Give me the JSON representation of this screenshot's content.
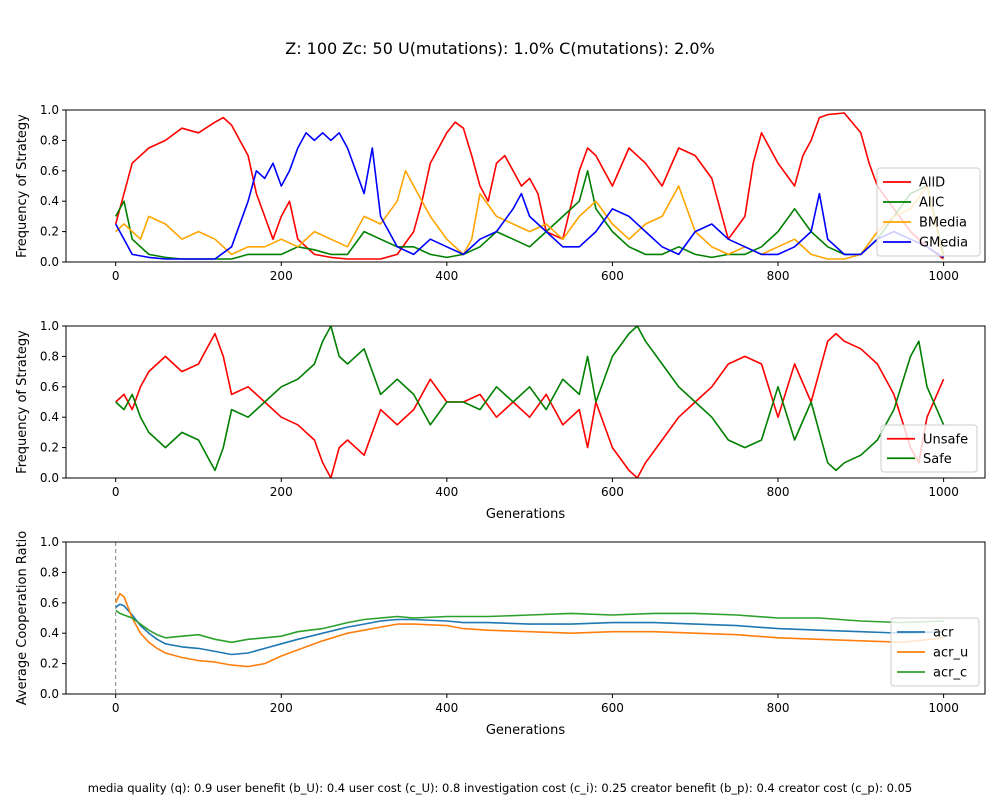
{
  "figure": {
    "title": "Z: 100  Zc: 50  U(mutations): 1.0%  C(mutations): 2.0%",
    "footer": "media quality (q): 0.9  user benefit (b_U): 0.4  user cost (c_U): 0.8  investigation cost (c_i): 0.25  creator benefit (b_p): 0.4  creator cost (c_p): 0.05"
  },
  "chart_data": [
    {
      "type": "line",
      "xlabel": "",
      "ylabel": "Frequency of Strategy",
      "xlim": [
        -60,
        1050
      ],
      "ylim": [
        0,
        1
      ],
      "xticks": [
        0,
        200,
        400,
        600,
        800,
        1000
      ],
      "yticks": [
        0.0,
        0.2,
        0.4,
        0.6,
        0.8,
        1.0
      ],
      "grid": false,
      "legend": "right",
      "series": [
        {
          "name": "AllD",
          "color": "#ff0000",
          "x": [
            0,
            10,
            20,
            40,
            60,
            80,
            100,
            120,
            130,
            140,
            160,
            170,
            180,
            190,
            200,
            210,
            220,
            240,
            260,
            280,
            300,
            320,
            340,
            360,
            370,
            380,
            390,
            400,
            410,
            420,
            430,
            440,
            450,
            460,
            470,
            480,
            490,
            500,
            510,
            520,
            540,
            560,
            570,
            580,
            600,
            620,
            640,
            660,
            680,
            700,
            720,
            740,
            760,
            770,
            780,
            800,
            820,
            830,
            840,
            850,
            860,
            880,
            900,
            910,
            920,
            940,
            960,
            980,
            1000
          ],
          "y": [
            0.25,
            0.45,
            0.65,
            0.75,
            0.8,
            0.88,
            0.85,
            0.92,
            0.95,
            0.9,
            0.7,
            0.45,
            0.3,
            0.15,
            0.3,
            0.4,
            0.15,
            0.05,
            0.03,
            0.02,
            0.02,
            0.02,
            0.05,
            0.2,
            0.4,
            0.65,
            0.75,
            0.85,
            0.92,
            0.88,
            0.7,
            0.5,
            0.4,
            0.65,
            0.7,
            0.6,
            0.5,
            0.55,
            0.45,
            0.2,
            0.15,
            0.6,
            0.75,
            0.7,
            0.5,
            0.75,
            0.65,
            0.5,
            0.75,
            0.7,
            0.55,
            0.15,
            0.3,
            0.65,
            0.85,
            0.65,
            0.5,
            0.7,
            0.8,
            0.95,
            0.97,
            0.98,
            0.85,
            0.65,
            0.5,
            0.35,
            0.2,
            0.1,
            0.02
          ]
        },
        {
          "name": "AllC",
          "color": "#008000",
          "x": [
            0,
            5,
            10,
            20,
            40,
            60,
            80,
            100,
            120,
            140,
            160,
            180,
            200,
            220,
            240,
            260,
            280,
            300,
            320,
            340,
            360,
            380,
            400,
            420,
            440,
            460,
            480,
            500,
            520,
            540,
            560,
            570,
            580,
            600,
            620,
            640,
            660,
            680,
            700,
            720,
            740,
            760,
            780,
            800,
            820,
            840,
            860,
            880,
            900,
            920,
            940,
            960,
            980,
            1000
          ],
          "y": [
            0.3,
            0.35,
            0.4,
            0.15,
            0.05,
            0.03,
            0.02,
            0.02,
            0.02,
            0.02,
            0.05,
            0.05,
            0.05,
            0.1,
            0.08,
            0.05,
            0.05,
            0.2,
            0.15,
            0.1,
            0.1,
            0.05,
            0.03,
            0.05,
            0.1,
            0.2,
            0.15,
            0.1,
            0.2,
            0.3,
            0.4,
            0.6,
            0.35,
            0.2,
            0.1,
            0.05,
            0.05,
            0.1,
            0.05,
            0.03,
            0.05,
            0.05,
            0.1,
            0.2,
            0.35,
            0.2,
            0.1,
            0.05,
            0.05,
            0.15,
            0.3,
            0.45,
            0.5,
            0.05
          ]
        },
        {
          "name": "BMedia",
          "color": "#ffa500",
          "x": [
            0,
            10,
            20,
            30,
            40,
            60,
            80,
            100,
            120,
            140,
            160,
            180,
            200,
            220,
            240,
            260,
            280,
            300,
            320,
            340,
            350,
            360,
            380,
            400,
            420,
            430,
            440,
            460,
            480,
            500,
            520,
            540,
            560,
            580,
            600,
            620,
            640,
            660,
            680,
            700,
            720,
            740,
            760,
            780,
            800,
            820,
            840,
            860,
            880,
            900,
            920,
            940,
            960,
            980,
            1000
          ],
          "y": [
            0.2,
            0.25,
            0.2,
            0.15,
            0.3,
            0.25,
            0.15,
            0.2,
            0.15,
            0.05,
            0.1,
            0.1,
            0.15,
            0.1,
            0.2,
            0.15,
            0.1,
            0.3,
            0.25,
            0.4,
            0.6,
            0.5,
            0.3,
            0.15,
            0.05,
            0.15,
            0.45,
            0.3,
            0.25,
            0.2,
            0.25,
            0.15,
            0.3,
            0.4,
            0.25,
            0.15,
            0.25,
            0.3,
            0.5,
            0.2,
            0.1,
            0.05,
            0.1,
            0.05,
            0.1,
            0.15,
            0.05,
            0.02,
            0.02,
            0.05,
            0.2,
            0.3,
            0.35,
            0.5,
            0.02
          ]
        },
        {
          "name": "GMedia",
          "color": "#0000ff",
          "x": [
            0,
            10,
            20,
            40,
            60,
            80,
            100,
            120,
            140,
            160,
            170,
            180,
            190,
            200,
            210,
            220,
            230,
            240,
            250,
            260,
            270,
            280,
            290,
            300,
            310,
            320,
            330,
            340,
            360,
            380,
            400,
            420,
            440,
            460,
            480,
            490,
            500,
            520,
            540,
            560,
            580,
            600,
            620,
            640,
            660,
            680,
            700,
            720,
            740,
            760,
            780,
            800,
            820,
            840,
            850,
            860,
            880,
            900,
            920,
            940,
            960,
            980,
            1000
          ],
          "y": [
            0.25,
            0.15,
            0.05,
            0.03,
            0.02,
            0.02,
            0.02,
            0.02,
            0.1,
            0.4,
            0.6,
            0.55,
            0.65,
            0.5,
            0.6,
            0.75,
            0.85,
            0.8,
            0.85,
            0.8,
            0.85,
            0.75,
            0.6,
            0.45,
            0.75,
            0.3,
            0.2,
            0.1,
            0.05,
            0.15,
            0.1,
            0.05,
            0.15,
            0.2,
            0.35,
            0.45,
            0.3,
            0.2,
            0.1,
            0.1,
            0.2,
            0.35,
            0.3,
            0.2,
            0.1,
            0.05,
            0.2,
            0.25,
            0.15,
            0.1,
            0.05,
            0.05,
            0.1,
            0.2,
            0.45,
            0.15,
            0.05,
            0.05,
            0.15,
            0.2,
            0.15,
            0.1,
            0.03
          ]
        }
      ]
    },
    {
      "type": "line",
      "xlabel": "Generations",
      "ylabel": "Frequency of Strategy",
      "xlim": [
        -60,
        1050
      ],
      "ylim": [
        0,
        1
      ],
      "xticks": [
        0,
        200,
        400,
        600,
        800,
        1000
      ],
      "yticks": [
        0.0,
        0.2,
        0.4,
        0.6,
        0.8,
        1.0
      ],
      "grid": false,
      "legend": "right",
      "series": [
        {
          "name": "Unsafe",
          "color": "#ff0000",
          "x": [
            0,
            10,
            20,
            30,
            40,
            60,
            80,
            100,
            110,
            120,
            130,
            140,
            160,
            180,
            200,
            220,
            240,
            250,
            260,
            270,
            280,
            300,
            320,
            340,
            360,
            380,
            400,
            420,
            440,
            460,
            480,
            500,
            520,
            540,
            560,
            570,
            580,
            600,
            620,
            630,
            640,
            660,
            680,
            700,
            720,
            740,
            760,
            780,
            800,
            820,
            840,
            860,
            870,
            880,
            900,
            920,
            940,
            960,
            970,
            980,
            1000
          ],
          "y": [
            0.5,
            0.55,
            0.45,
            0.6,
            0.7,
            0.8,
            0.7,
            0.75,
            0.85,
            0.95,
            0.8,
            0.55,
            0.6,
            0.5,
            0.4,
            0.35,
            0.25,
            0.1,
            0.0,
            0.2,
            0.25,
            0.15,
            0.45,
            0.35,
            0.45,
            0.65,
            0.5,
            0.5,
            0.55,
            0.4,
            0.5,
            0.4,
            0.55,
            0.35,
            0.45,
            0.2,
            0.5,
            0.2,
            0.05,
            0.0,
            0.1,
            0.25,
            0.4,
            0.5,
            0.6,
            0.75,
            0.8,
            0.75,
            0.4,
            0.75,
            0.5,
            0.9,
            0.95,
            0.9,
            0.85,
            0.75,
            0.55,
            0.2,
            0.1,
            0.4,
            0.65
          ]
        },
        {
          "name": "Safe",
          "color": "#008000",
          "x": [
            0,
            10,
            20,
            30,
            40,
            60,
            80,
            100,
            110,
            120,
            130,
            140,
            160,
            180,
            200,
            220,
            240,
            250,
            260,
            270,
            280,
            300,
            320,
            340,
            360,
            380,
            400,
            420,
            440,
            460,
            480,
            500,
            520,
            540,
            560,
            570,
            580,
            600,
            620,
            630,
            640,
            660,
            680,
            700,
            720,
            740,
            760,
            780,
            800,
            820,
            840,
            860,
            870,
            880,
            900,
            920,
            940,
            960,
            970,
            980,
            1000
          ],
          "y": [
            0.5,
            0.45,
            0.55,
            0.4,
            0.3,
            0.2,
            0.3,
            0.25,
            0.15,
            0.05,
            0.2,
            0.45,
            0.4,
            0.5,
            0.6,
            0.65,
            0.75,
            0.9,
            1.0,
            0.8,
            0.75,
            0.85,
            0.55,
            0.65,
            0.55,
            0.35,
            0.5,
            0.5,
            0.45,
            0.6,
            0.5,
            0.6,
            0.45,
            0.65,
            0.55,
            0.8,
            0.5,
            0.8,
            0.95,
            1.0,
            0.9,
            0.75,
            0.6,
            0.5,
            0.4,
            0.25,
            0.2,
            0.25,
            0.6,
            0.25,
            0.5,
            0.1,
            0.05,
            0.1,
            0.15,
            0.25,
            0.45,
            0.8,
            0.9,
            0.6,
            0.35
          ]
        }
      ]
    },
    {
      "type": "line",
      "xlabel": "Generations",
      "ylabel": "Average Cooperation Ratio",
      "xlim": [
        -60,
        1050
      ],
      "ylim": [
        0,
        1
      ],
      "xticks": [
        0,
        200,
        400,
        600,
        800,
        1000
      ],
      "yticks": [
        0.0,
        0.2,
        0.4,
        0.6,
        0.8,
        1.0
      ],
      "grid": false,
      "legend": "right",
      "vline": 0,
      "series": [
        {
          "name": "acr",
          "color": "#1f77b4",
          "x": [
            0,
            5,
            10,
            20,
            30,
            40,
            50,
            60,
            80,
            100,
            120,
            140,
            160,
            180,
            200,
            220,
            250,
            280,
            300,
            320,
            340,
            360,
            400,
            420,
            450,
            500,
            550,
            600,
            650,
            700,
            750,
            800,
            850,
            900,
            950,
            1000
          ],
          "y": [
            0.57,
            0.59,
            0.58,
            0.52,
            0.45,
            0.4,
            0.36,
            0.33,
            0.31,
            0.3,
            0.28,
            0.26,
            0.27,
            0.3,
            0.33,
            0.36,
            0.4,
            0.44,
            0.46,
            0.48,
            0.49,
            0.49,
            0.48,
            0.47,
            0.47,
            0.46,
            0.46,
            0.47,
            0.47,
            0.46,
            0.45,
            0.43,
            0.42,
            0.41,
            0.4,
            0.41
          ]
        },
        {
          "name": "acr_u",
          "color": "#ff7f0e",
          "x": [
            0,
            5,
            10,
            20,
            30,
            40,
            50,
            60,
            80,
            100,
            120,
            140,
            160,
            180,
            200,
            220,
            250,
            280,
            300,
            320,
            340,
            360,
            400,
            420,
            450,
            500,
            550,
            600,
            650,
            700,
            750,
            800,
            850,
            900,
            950,
            1000
          ],
          "y": [
            0.6,
            0.66,
            0.64,
            0.5,
            0.4,
            0.34,
            0.3,
            0.27,
            0.24,
            0.22,
            0.21,
            0.19,
            0.18,
            0.2,
            0.25,
            0.29,
            0.35,
            0.4,
            0.42,
            0.44,
            0.46,
            0.46,
            0.45,
            0.43,
            0.42,
            0.41,
            0.4,
            0.41,
            0.41,
            0.4,
            0.39,
            0.37,
            0.36,
            0.35,
            0.34,
            0.37
          ]
        },
        {
          "name": "acr_c",
          "color": "#2ca02c",
          "x": [
            0,
            5,
            10,
            20,
            30,
            40,
            50,
            60,
            80,
            100,
            120,
            140,
            160,
            180,
            200,
            220,
            250,
            280,
            300,
            320,
            340,
            360,
            400,
            420,
            450,
            500,
            550,
            600,
            650,
            700,
            750,
            800,
            850,
            900,
            950,
            1000
          ],
          "y": [
            0.55,
            0.53,
            0.52,
            0.5,
            0.46,
            0.42,
            0.39,
            0.37,
            0.38,
            0.39,
            0.36,
            0.34,
            0.36,
            0.37,
            0.38,
            0.41,
            0.43,
            0.47,
            0.49,
            0.5,
            0.51,
            0.5,
            0.51,
            0.51,
            0.51,
            0.52,
            0.53,
            0.52,
            0.53,
            0.53,
            0.52,
            0.5,
            0.5,
            0.48,
            0.47,
            0.48
          ]
        }
      ]
    }
  ]
}
